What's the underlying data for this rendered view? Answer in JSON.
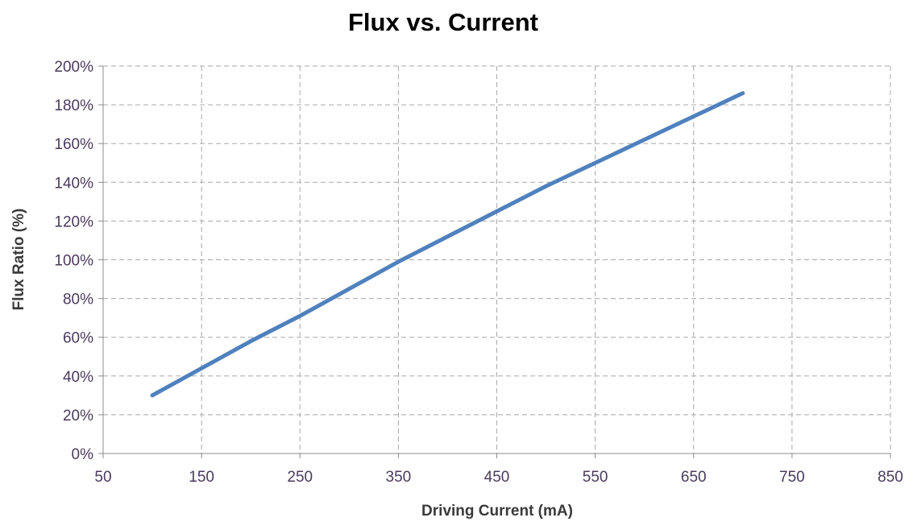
{
  "chart_data": {
    "type": "line",
    "title": "Flux vs. Current",
    "xlabel": "Driving Current (mA)",
    "ylabel": "Flux Ratio (%)",
    "xlim": [
      50,
      850
    ],
    "ylim": [
      0,
      200
    ],
    "x_ticks": [
      50,
      150,
      250,
      350,
      450,
      550,
      650,
      750,
      850
    ],
    "y_ticks": [
      0,
      20,
      40,
      60,
      80,
      100,
      120,
      140,
      160,
      180,
      200
    ],
    "x_tick_labels": [
      "50",
      "150",
      "250",
      "350",
      "450",
      "550",
      "650",
      "750",
      "850"
    ],
    "y_tick_labels": [
      "0%",
      "20%",
      "40%",
      "60%",
      "80%",
      "100%",
      "120%",
      "140%",
      "160%",
      "180%",
      "200%"
    ],
    "grid": true,
    "legend": "none",
    "series": [
      {
        "color": "#4f81bd",
        "x": [
          100,
          150,
          200,
          250,
          300,
          350,
          400,
          450,
          500,
          550,
          600,
          650,
          700
        ],
        "y": [
          30,
          44,
          58,
          71,
          85,
          99,
          112,
          125,
          138,
          150,
          162,
          174,
          186
        ]
      }
    ]
  }
}
